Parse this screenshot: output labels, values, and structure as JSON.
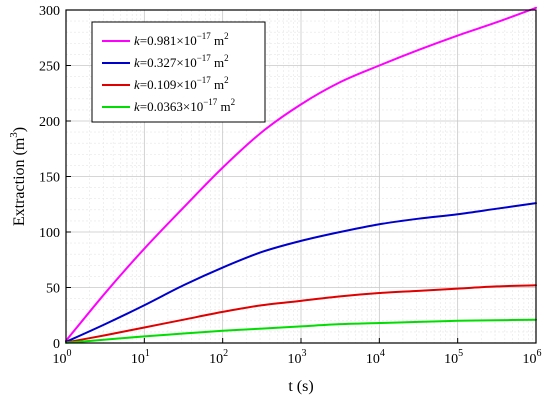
{
  "chart_data": {
    "type": "line",
    "xlabel": "t (s)",
    "ylabel": "Extraction (m³)",
    "x_scale": "log",
    "xlim": [
      1,
      1000000
    ],
    "ylim": [
      0,
      300
    ],
    "x_ticks": [
      {
        "base": "10",
        "exp": "0"
      },
      {
        "base": "10",
        "exp": "1"
      },
      {
        "base": "10",
        "exp": "2"
      },
      {
        "base": "10",
        "exp": "3"
      },
      {
        "base": "10",
        "exp": "4"
      },
      {
        "base": "10",
        "exp": "5"
      },
      {
        "base": "10",
        "exp": "6"
      }
    ],
    "y_ticks": [
      "0",
      "50",
      "100",
      "150",
      "200",
      "250",
      "300"
    ],
    "grid": true,
    "legend_position": "top-left",
    "x": [
      1,
      3.162,
      10,
      31.62,
      100,
      316.2,
      1000,
      3162,
      10000,
      31620,
      100000,
      316200,
      1000000
    ],
    "series": [
      {
        "var": "k",
        "value": "=0.981×10",
        "exp": "−17",
        "unit": " m",
        "unit_exp": "2",
        "color": "#ff00ff",
        "values": [
          2,
          45,
          85,
          122,
          158,
          190,
          215,
          235,
          250,
          264,
          277,
          289,
          302
        ]
      },
      {
        "var": "k",
        "value": "=0.327×10",
        "exp": "−17",
        "unit": " m",
        "unit_exp": "2",
        "color": "#0000cc",
        "values": [
          1,
          17,
          34,
          52,
          68,
          82,
          92,
          100,
          107,
          112,
          116,
          121,
          126
        ]
      },
      {
        "var": "k",
        "value": "=0.109×10",
        "exp": "−17",
        "unit": " m",
        "unit_exp": "2",
        "color": "#e00000",
        "values": [
          0.5,
          7,
          14,
          21,
          28,
          34,
          38,
          42,
          45,
          47,
          49,
          51,
          52
        ]
      },
      {
        "var": "k",
        "value": "=0.0363×10",
        "exp": "−17",
        "unit": " m",
        "unit_exp": "2",
        "color": "#00dd00",
        "values": [
          0.2,
          3,
          6,
          8.5,
          11,
          13,
          15,
          17,
          18,
          19,
          20,
          20.5,
          21
        ]
      }
    ]
  }
}
